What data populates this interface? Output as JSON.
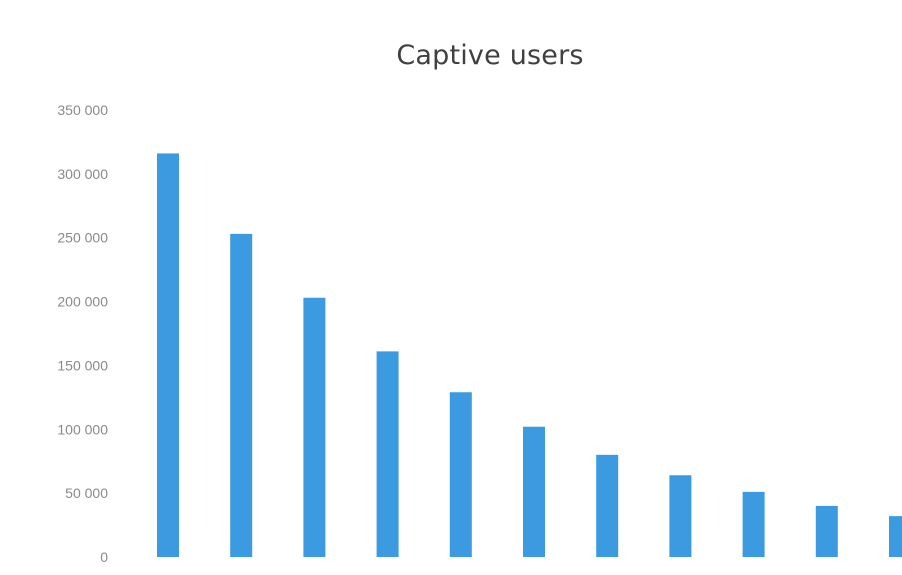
{
  "chart_data": {
    "type": "bar",
    "title": "Captive users",
    "xlabel": "",
    "ylabel": "",
    "ylim": [
      0,
      350000
    ],
    "yticks": [
      {
        "value": 0,
        "label": "0"
      },
      {
        "value": 50000,
        "label": "50 000"
      },
      {
        "value": 100000,
        "label": "100 000"
      },
      {
        "value": 150000,
        "label": "150 000"
      },
      {
        "value": 200000,
        "label": "200 000"
      },
      {
        "value": 250000,
        "label": "250 000"
      },
      {
        "value": 300000,
        "label": "300 000"
      },
      {
        "value": 350000,
        "label": "350 000"
      }
    ],
    "categories": [
      "",
      "",
      "",
      "",
      "",
      "",
      "",
      "",
      "",
      "",
      ""
    ],
    "values": [
      316000,
      253000,
      203000,
      161000,
      129000,
      102000,
      80000,
      64000,
      51000,
      40000,
      32000
    ],
    "grid": false,
    "legend": "none",
    "bar_color": "#3b9ae0"
  }
}
